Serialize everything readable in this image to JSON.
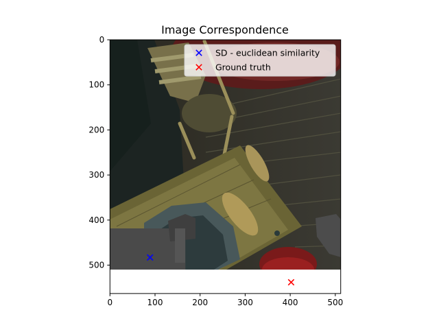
{
  "chart_data": {
    "type": "scatter",
    "title": "Image Correspondence",
    "xlabel": "",
    "ylabel": "",
    "xlim": [
      0,
      512
    ],
    "ylim": [
      563,
      0
    ],
    "image_extent": [
      0,
      512,
      512,
      0
    ],
    "xticks": [
      "0",
      "100",
      "200",
      "300",
      "400",
      "500"
    ],
    "yticks": [
      "0",
      "100",
      "200",
      "300",
      "400",
      "500"
    ],
    "legend_position": "upper right",
    "grid": false,
    "series": [
      {
        "name": "SD - euclidean similarity",
        "marker": "x",
        "color": "#0000ff",
        "points": [
          [
            89,
            483
          ]
        ]
      },
      {
        "name": "Ground truth",
        "marker": "x",
        "color": "#ff0000",
        "points": [
          [
            402,
            538
          ]
        ]
      }
    ]
  }
}
